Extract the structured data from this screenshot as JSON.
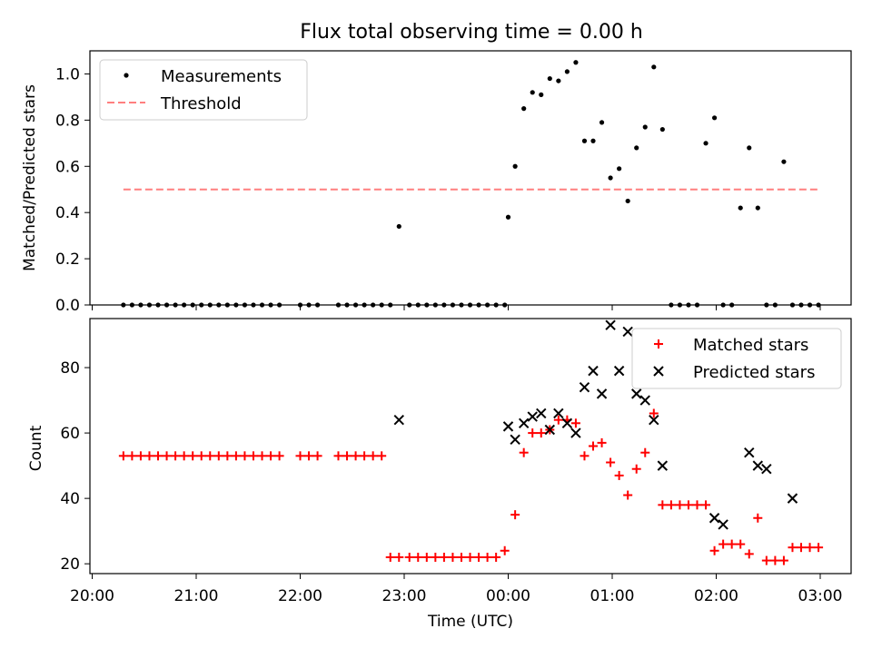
{
  "chart_data": [
    {
      "type": "scatter",
      "title": "Flux total observing time = 0.00 h",
      "xlabel": "",
      "ylabel": "Matched/Predicted stars",
      "ylim": [
        0,
        1.1
      ],
      "yticks": [
        "0.0",
        "0.2",
        "0.4",
        "0.6",
        "0.8",
        "1.0"
      ],
      "grid": false,
      "legend": {
        "placement": "top-left",
        "entries": [
          "Measurements",
          "Threshold"
        ]
      },
      "series": [
        {
          "name": "Measurements",
          "marker": "dot",
          "color": "#000000",
          "x": [
            "20:18",
            "20:23",
            "20:28",
            "20:33",
            "20:38",
            "20:43",
            "20:48",
            "20:53",
            "20:58",
            "21:03",
            "21:08",
            "21:13",
            "21:18",
            "21:23",
            "21:28",
            "21:33",
            "21:38",
            "21:43",
            "21:48",
            "22:00",
            "22:05",
            "22:10",
            "22:22",
            "22:27",
            "22:32",
            "22:37",
            "22:42",
            "22:47",
            "22:52",
            "22:57",
            "23:03",
            "23:08",
            "23:13",
            "23:18",
            "23:23",
            "23:28",
            "23:33",
            "23:38",
            "23:43",
            "23:48",
            "23:53",
            "23:58",
            "00:00",
            "00:04",
            "00:09",
            "00:14",
            "00:19",
            "00:24",
            "00:29",
            "00:34",
            "00:39",
            "00:44",
            "00:49",
            "00:54",
            "00:59",
            "01:04",
            "01:09",
            "01:14",
            "01:19",
            "01:24",
            "01:29",
            "01:34",
            "01:39",
            "01:44",
            "01:49",
            "01:54",
            "01:59",
            "02:04",
            "02:09",
            "02:14",
            "02:19",
            "02:24",
            "02:29",
            "02:34",
            "02:39",
            "02:44",
            "02:49",
            "02:54",
            "02:59"
          ],
          "y": [
            0,
            0,
            0,
            0,
            0,
            0,
            0,
            0,
            0,
            0,
            0,
            0,
            0,
            0,
            0,
            0,
            0,
            0,
            0,
            0,
            0,
            0,
            0,
            0,
            0,
            0,
            0,
            0,
            0,
            0.34,
            0,
            0,
            0,
            0,
            0,
            0,
            0,
            0,
            0,
            0,
            0,
            0,
            0.38,
            0.6,
            0.85,
            0.92,
            0.91,
            0.98,
            0.97,
            1.01,
            1.05,
            0.71,
            0.71,
            0.79,
            0.55,
            0.59,
            0.45,
            0.68,
            0.77,
            1.03,
            0.76,
            0,
            0,
            0,
            0,
            0.7,
            0.81,
            0,
            0,
            0.42,
            0.68,
            0.42,
            0,
            0,
            0.62,
            0,
            0,
            0,
            0
          ]
        },
        {
          "name": "Threshold",
          "style": "dashed",
          "color": "#ff7f7f",
          "x": [
            "20:18",
            "02:59"
          ],
          "y": [
            0.5,
            0.5
          ]
        }
      ]
    },
    {
      "type": "scatter",
      "title": "",
      "xlabel": "Time (UTC)",
      "ylabel": "Count",
      "ylim": [
        17,
        95
      ],
      "yticks": [
        "20",
        "40",
        "60",
        "80"
      ],
      "xticks": [
        "20:00",
        "21:00",
        "22:00",
        "23:00",
        "00:00",
        "01:00",
        "02:00",
        "03:00"
      ],
      "grid": false,
      "legend": {
        "placement": "top-right",
        "entries": [
          "Matched stars",
          "Predicted stars"
        ]
      },
      "series": [
        {
          "name": "Matched stars",
          "marker": "plus",
          "color": "#ff0000",
          "x": [
            "20:18",
            "20:23",
            "20:28",
            "20:33",
            "20:38",
            "20:43",
            "20:48",
            "20:53",
            "20:58",
            "21:03",
            "21:08",
            "21:13",
            "21:18",
            "21:23",
            "21:28",
            "21:33",
            "21:38",
            "21:43",
            "21:48",
            "22:00",
            "22:05",
            "22:10",
            "22:22",
            "22:27",
            "22:32",
            "22:37",
            "22:42",
            "22:47",
            "22:52",
            "22:57",
            "23:03",
            "23:08",
            "23:13",
            "23:18",
            "23:23",
            "23:28",
            "23:33",
            "23:38",
            "23:43",
            "23:48",
            "23:53",
            "23:58",
            "00:04",
            "00:09",
            "00:14",
            "00:19",
            "00:24",
            "00:29",
            "00:34",
            "00:39",
            "00:44",
            "00:49",
            "00:54",
            "00:59",
            "01:04",
            "01:09",
            "01:14",
            "01:19",
            "01:24",
            "01:29",
            "01:34",
            "01:39",
            "01:44",
            "01:49",
            "01:54",
            "01:59",
            "02:04",
            "02:09",
            "02:14",
            "02:19",
            "02:24",
            "02:29",
            "02:34",
            "02:39",
            "02:44",
            "02:49",
            "02:54",
            "02:59"
          ],
          "y": [
            53,
            53,
            53,
            53,
            53,
            53,
            53,
            53,
            53,
            53,
            53,
            53,
            53,
            53,
            53,
            53,
            53,
            53,
            53,
            53,
            53,
            53,
            53,
            53,
            53,
            53,
            53,
            53,
            22,
            22,
            22,
            22,
            22,
            22,
            22,
            22,
            22,
            22,
            22,
            22,
            22,
            24,
            35,
            54,
            60,
            60,
            61,
            64,
            64,
            63,
            53,
            56,
            57,
            51,
            47,
            41,
            49,
            54,
            66,
            38,
            38,
            38,
            38,
            38,
            38,
            24,
            26,
            26,
            26,
            23,
            34,
            21,
            21,
            21,
            25,
            25,
            25,
            25
          ]
        },
        {
          "name": "Predicted stars",
          "marker": "x",
          "color": "#000000",
          "x": [
            "22:57",
            "00:00",
            "00:04",
            "00:09",
            "00:14",
            "00:19",
            "00:24",
            "00:29",
            "00:34",
            "00:39",
            "00:44",
            "00:49",
            "00:54",
            "00:59",
            "01:04",
            "01:09",
            "01:14",
            "01:19",
            "01:24",
            "01:29",
            "01:59",
            "02:04",
            "02:19",
            "02:24",
            "02:29",
            "02:44"
          ],
          "y": [
            64,
            62,
            58,
            63,
            65,
            66,
            61,
            66,
            63,
            60,
            74,
            79,
            72,
            93,
            79,
            91,
            72,
            70,
            64,
            50,
            34,
            32,
            54,
            50,
            49,
            40
          ]
        }
      ]
    }
  ]
}
